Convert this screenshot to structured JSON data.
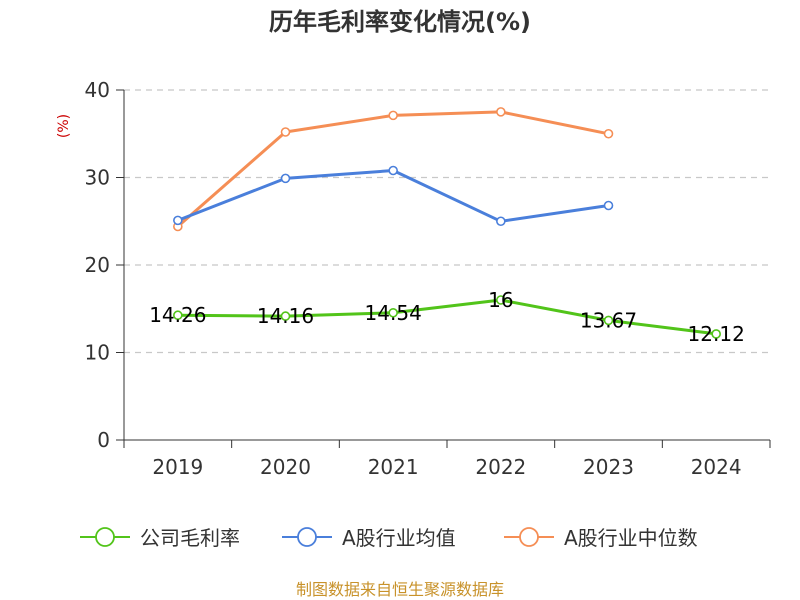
{
  "chart_data": {
    "type": "line",
    "title": "历年毛利率变化情况(%)",
    "ylabel": "(%)",
    "categories": [
      "2019",
      "2020",
      "2021",
      "2022",
      "2023",
      "2024"
    ],
    "ylim": [
      0,
      40
    ],
    "yticks": [
      0,
      10,
      20,
      30,
      40
    ],
    "grid": true,
    "legend_position": "bottom",
    "series": [
      {
        "name": "公司毛利率",
        "color": "#52c41a",
        "values": [
          14.26,
          14.16,
          14.54,
          16,
          13.67,
          12.12
        ],
        "labels": [
          "14.26",
          "14.16",
          "14.54",
          "16",
          "13.67",
          "12.12"
        ]
      },
      {
        "name": "A股行业均值",
        "color": "#4a7fdb",
        "values": [
          25.1,
          29.9,
          30.8,
          25.0,
          26.8,
          null
        ]
      },
      {
        "name": "A股行业中位数",
        "color": "#f58e55",
        "values": [
          24.4,
          35.2,
          37.1,
          37.5,
          35.0,
          null
        ]
      }
    ]
  },
  "source": "制图数据来自恒生聚源数据库"
}
